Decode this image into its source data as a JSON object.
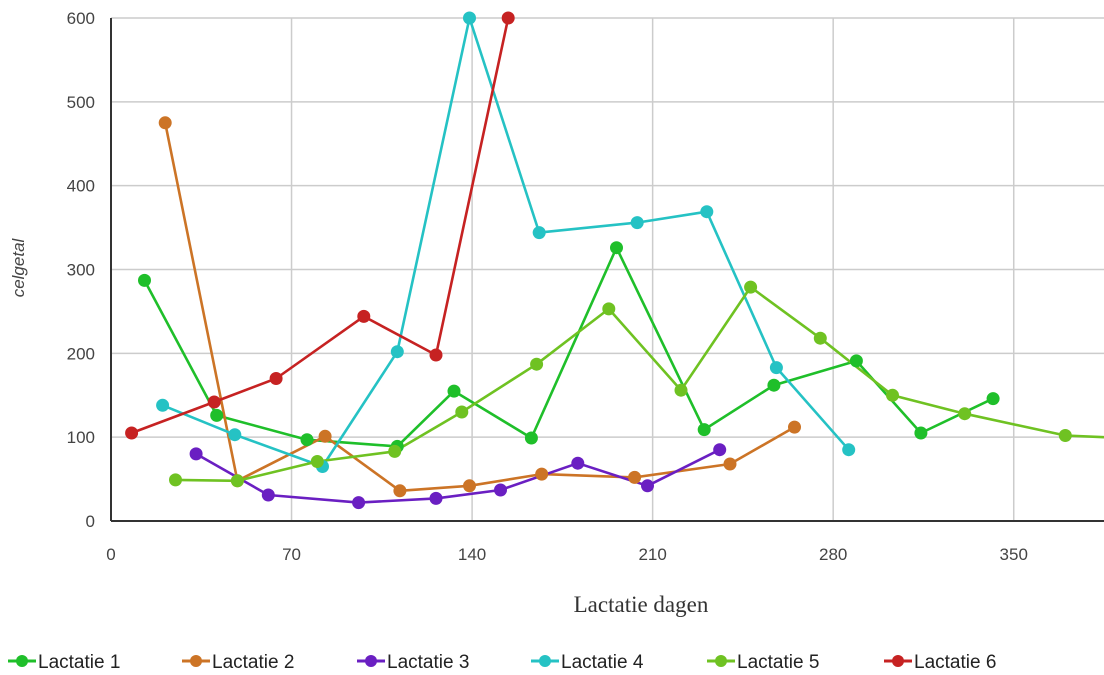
{
  "chart_data": {
    "type": "line",
    "xlabel": "Lactatie dagen",
    "ylabel": "celgetal",
    "xlim": [
      0,
      385
    ],
    "ylim": [
      0,
      600
    ],
    "xticks": [
      0,
      70,
      140,
      210,
      280,
      350
    ],
    "yticks": [
      0,
      100,
      200,
      300,
      400,
      500,
      600
    ],
    "grid": true,
    "legend_position": "bottom",
    "series": [
      {
        "name": "Lactatie 1",
        "color": "#1fbf2a",
        "points": [
          [
            13,
            287
          ],
          [
            41,
            126
          ],
          [
            76,
            97
          ],
          [
            111,
            89
          ],
          [
            133,
            155
          ],
          [
            163,
            99
          ],
          [
            196,
            326
          ],
          [
            230,
            109
          ],
          [
            257,
            162
          ],
          [
            289,
            191
          ],
          [
            314,
            105
          ],
          [
            342,
            146
          ]
        ]
      },
      {
        "name": "Lactatie 2",
        "color": "#cc7426",
        "points": [
          [
            21,
            475
          ],
          [
            49,
            48
          ],
          [
            83,
            101
          ],
          [
            112,
            36
          ],
          [
            139,
            42
          ],
          [
            167,
            56
          ],
          [
            203,
            52
          ],
          [
            240,
            68
          ],
          [
            265,
            112
          ]
        ]
      },
      {
        "name": "Lactatie 3",
        "color": "#6a1fc2",
        "points": [
          [
            33,
            80
          ],
          [
            61,
            31
          ],
          [
            96,
            22
          ],
          [
            126,
            27
          ],
          [
            151,
            37
          ],
          [
            181,
            69
          ],
          [
            208,
            42
          ],
          [
            236,
            85
          ]
        ]
      },
      {
        "name": "Lactatie 4",
        "color": "#25c2c4",
        "points": [
          [
            20,
            138
          ],
          [
            48,
            103
          ],
          [
            82,
            65
          ],
          [
            111,
            202
          ],
          [
            139,
            600
          ],
          [
            166,
            344
          ],
          [
            204,
            356
          ],
          [
            231,
            369
          ],
          [
            258,
            183
          ],
          [
            286,
            85
          ]
        ]
      },
      {
        "name": "Lactatie 5",
        "color": "#6fc222",
        "points": [
          [
            25,
            49
          ],
          [
            49,
            48
          ],
          [
            80,
            71
          ],
          [
            110,
            83
          ],
          [
            136,
            130
          ],
          [
            165,
            187
          ],
          [
            193,
            253
          ],
          [
            221,
            156
          ],
          [
            248,
            279
          ],
          [
            275,
            218
          ],
          [
            303,
            150
          ],
          [
            331,
            128
          ],
          [
            370,
            102
          ],
          [
            385,
            100
          ]
        ]
      },
      {
        "name": "Lactatie 6",
        "color": "#c62222",
        "points": [
          [
            8,
            105
          ],
          [
            40,
            142
          ],
          [
            64,
            170
          ],
          [
            98,
            244
          ],
          [
            126,
            198
          ],
          [
            154,
            600
          ]
        ]
      }
    ]
  }
}
